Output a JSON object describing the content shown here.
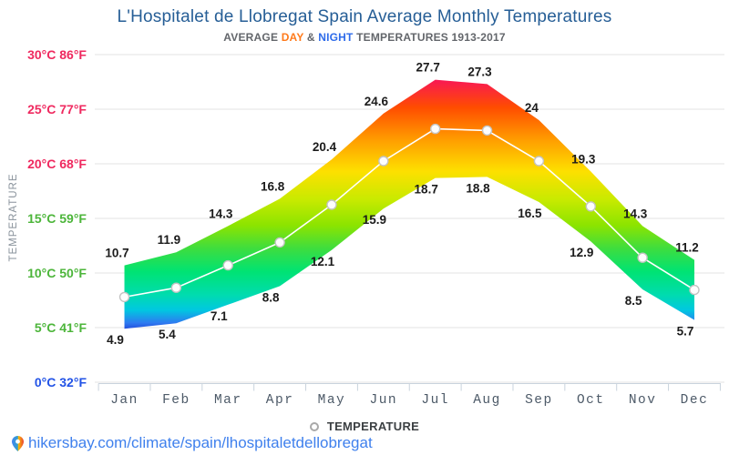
{
  "header": {
    "title": "L'Hospitalet de Llobregat Spain Average Monthly Temperatures",
    "subtitle_prefix": "AVERAGE ",
    "subtitle_day": "DAY",
    "subtitle_amp": " & ",
    "subtitle_night": "NIGHT",
    "subtitle_suffix": " TEMPERATURES 1913-2017",
    "subtitle_day_color": "#ff7a1a",
    "subtitle_night_color": "#2e6bea",
    "title_color": "#265e96"
  },
  "chart_data": {
    "type": "area",
    "categories": [
      "Jan",
      "Feb",
      "Mar",
      "Apr",
      "May",
      "Jun",
      "Jul",
      "Aug",
      "Sep",
      "Oct",
      "Nov",
      "Dec"
    ],
    "series": [
      {
        "name": "DAY",
        "values": [
          10.7,
          11.9,
          14.3,
          16.8,
          20.4,
          24.6,
          27.7,
          27.3,
          24,
          19.3,
          14.3,
          11.2
        ]
      },
      {
        "name": "NIGHT",
        "values": [
          4.9,
          5.4,
          7.1,
          8.8,
          12.1,
          15.9,
          18.7,
          18.8,
          16.5,
          12.9,
          8.5,
          5.7
        ]
      }
    ],
    "ylabel": "TEMPERATURE",
    "ylim": [
      0,
      30
    ],
    "grid": true,
    "legend_position": "bottom",
    "yticks": [
      {
        "label": "30°C 86°F",
        "color": "#ef295f"
      },
      {
        "label": "25°C 77°F",
        "color": "#ef295f"
      },
      {
        "label": "20°C 68°F",
        "color": "#ef295f"
      },
      {
        "label": "15°C 59°F",
        "color": "#4cb53a"
      },
      {
        "label": "10°C 50°F",
        "color": "#4cb53a"
      },
      {
        "label": "5°C 41°F",
        "color": "#4cb53a"
      },
      {
        "label": "0°C 32°F",
        "color": "#2253e6"
      }
    ],
    "gradient_stops": [
      {
        "offset": 0.0,
        "color": "#f8115e"
      },
      {
        "offset": 0.12,
        "color": "#ff4c00"
      },
      {
        "offset": 0.25,
        "color": "#ff9f00"
      },
      {
        "offset": 0.37,
        "color": "#fde000"
      },
      {
        "offset": 0.48,
        "color": "#c8ea00"
      },
      {
        "offset": 0.58,
        "color": "#8ce400"
      },
      {
        "offset": 0.67,
        "color": "#3edd3e"
      },
      {
        "offset": 0.76,
        "color": "#00e373"
      },
      {
        "offset": 0.85,
        "color": "#00dcae"
      },
      {
        "offset": 0.91,
        "color": "#00c8e0"
      },
      {
        "offset": 0.96,
        "color": "#2e7bf0"
      },
      {
        "offset": 1.0,
        "color": "#1b2fd0"
      }
    ],
    "colors": {
      "grid_line": "#e3e3e3",
      "axis_line": "#c9d3dd",
      "month_label": "#4d5a68",
      "data_label": "#1b1b1b",
      "mean_line": "#ffffff",
      "marker_stroke": "#c3c3c3",
      "y_axis_title": "#8a939c"
    }
  },
  "legend": {
    "label": "TEMPERATURE"
  },
  "footer": {
    "url": "hikersbay.com/climate/spain/lhospitaletdellobregat",
    "link_color": "#3f80ed"
  }
}
